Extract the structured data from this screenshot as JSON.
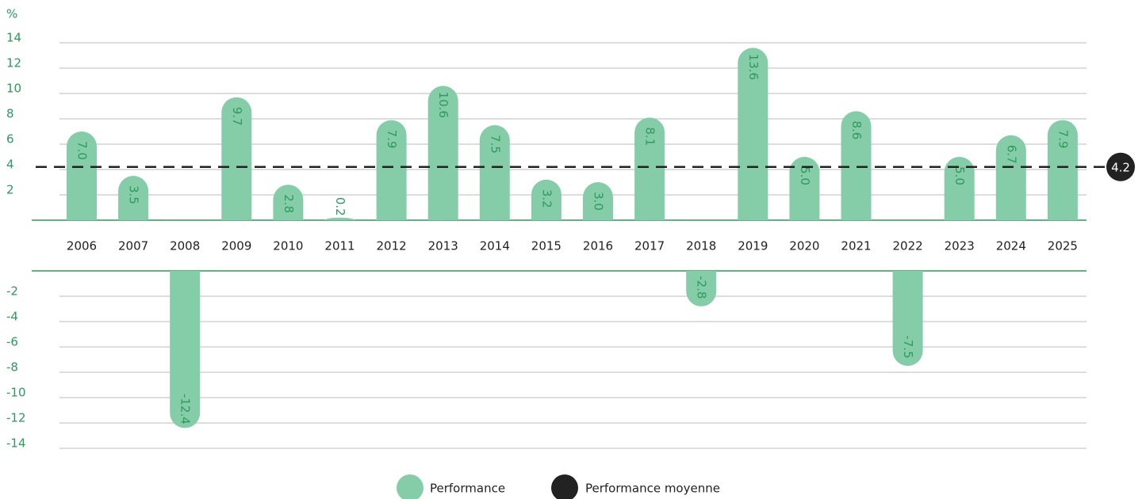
{
  "chart_data": {
    "type": "bar",
    "y_label": "%",
    "categories": [
      "2006",
      "2007",
      "2008",
      "2009",
      "2010",
      "2011",
      "2012",
      "2013",
      "2014",
      "2015",
      "2016",
      "2017",
      "2018",
      "2019",
      "2020",
      "2021",
      "2022",
      "2023",
      "2024",
      "2025"
    ],
    "series": [
      {
        "name": "Performance",
        "color": "#85cda9",
        "values": [
          7.0,
          3.5,
          -12.4,
          9.7,
          2.8,
          0.2,
          7.9,
          10.6,
          7.5,
          3.2,
          3.0,
          8.1,
          -2.8,
          13.6,
          5.0,
          8.6,
          -7.5,
          5.0,
          6.7,
          7.9
        ],
        "value_labels": [
          "7.0",
          "3.5",
          "-12.4",
          "9.7",
          "2.8",
          "0.2",
          "7.9",
          "10.6",
          "7.5",
          "3.2",
          "3.0",
          "8.1",
          "-2.8",
          "13.6",
          "5.0",
          "8.6",
          "-7.5",
          "5.0",
          "6.7",
          "7.9"
        ]
      }
    ],
    "mean": {
      "name": "Performance moyenne",
      "value": 4.2,
      "label": "4.2",
      "color": "#222222"
    },
    "ylim": [
      -14,
      14
    ],
    "yticks": [
      -14,
      -12,
      -10,
      -8,
      -6,
      -4,
      -2,
      2,
      4,
      6,
      8,
      10,
      12,
      14
    ],
    "grid": true
  }
}
